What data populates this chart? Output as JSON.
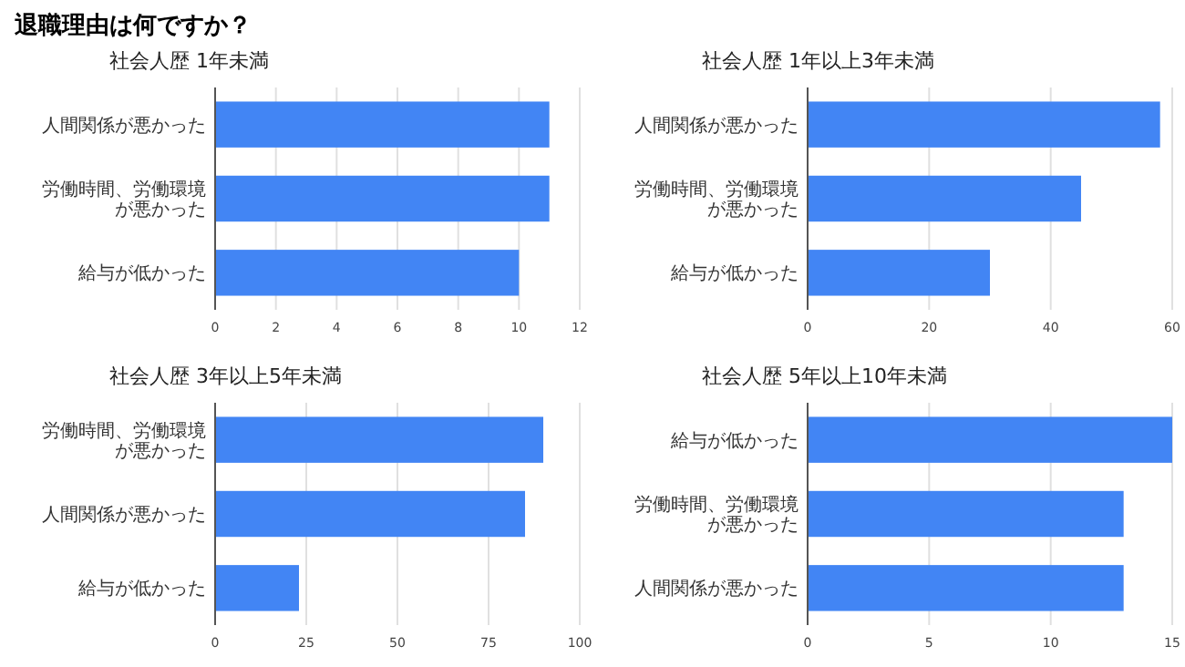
{
  "chart_data": [
    {
      "type": "other",
      "title": "退職理由は何ですか？"
    },
    {
      "type": "bar",
      "orientation": "horizontal",
      "title": "社会人歴 1年未満",
      "categories": [
        "人間関係が悪かった",
        "労働時間、労働環境が悪かった",
        "給与が低かった"
      ],
      "values": [
        11,
        11,
        10
      ],
      "color": "#4285f4",
      "xlim": [
        0,
        12
      ],
      "xticks": [
        0,
        2,
        4,
        6,
        8,
        10,
        12
      ],
      "grid": "x"
    },
    {
      "type": "bar",
      "orientation": "horizontal",
      "title": "社会人歴 1年以上3年未満",
      "categories": [
        "人間関係が悪かった",
        "労働時間、労働環境が悪かった",
        "給与が低かった"
      ],
      "values": [
        58,
        45,
        30
      ],
      "color": "#4285f4",
      "xlim": [
        0,
        60
      ],
      "xticks": [
        0,
        20,
        40,
        60
      ],
      "grid": "x"
    },
    {
      "type": "bar",
      "orientation": "horizontal",
      "title": "社会人歴 3年以上5年未満",
      "categories": [
        "労働時間、労働環境が悪かった",
        "人間関係が悪かった",
        "給与が低かった"
      ],
      "values": [
        90,
        85,
        23
      ],
      "color": "#4285f4",
      "xlim": [
        0,
        100
      ],
      "xticks": [
        0,
        25,
        50,
        75,
        100
      ],
      "grid": "x"
    },
    {
      "type": "bar",
      "orientation": "horizontal",
      "title": "社会人歴 5年以上10年未満",
      "categories": [
        "給与が低かった",
        "労働時間、労働環境が悪かった",
        "人間関係が悪かった"
      ],
      "values": [
        15,
        13,
        13
      ],
      "color": "#4285f4",
      "xlim": [
        0,
        15
      ],
      "xticks": [
        0,
        5,
        10,
        15
      ],
      "grid": "x"
    }
  ]
}
